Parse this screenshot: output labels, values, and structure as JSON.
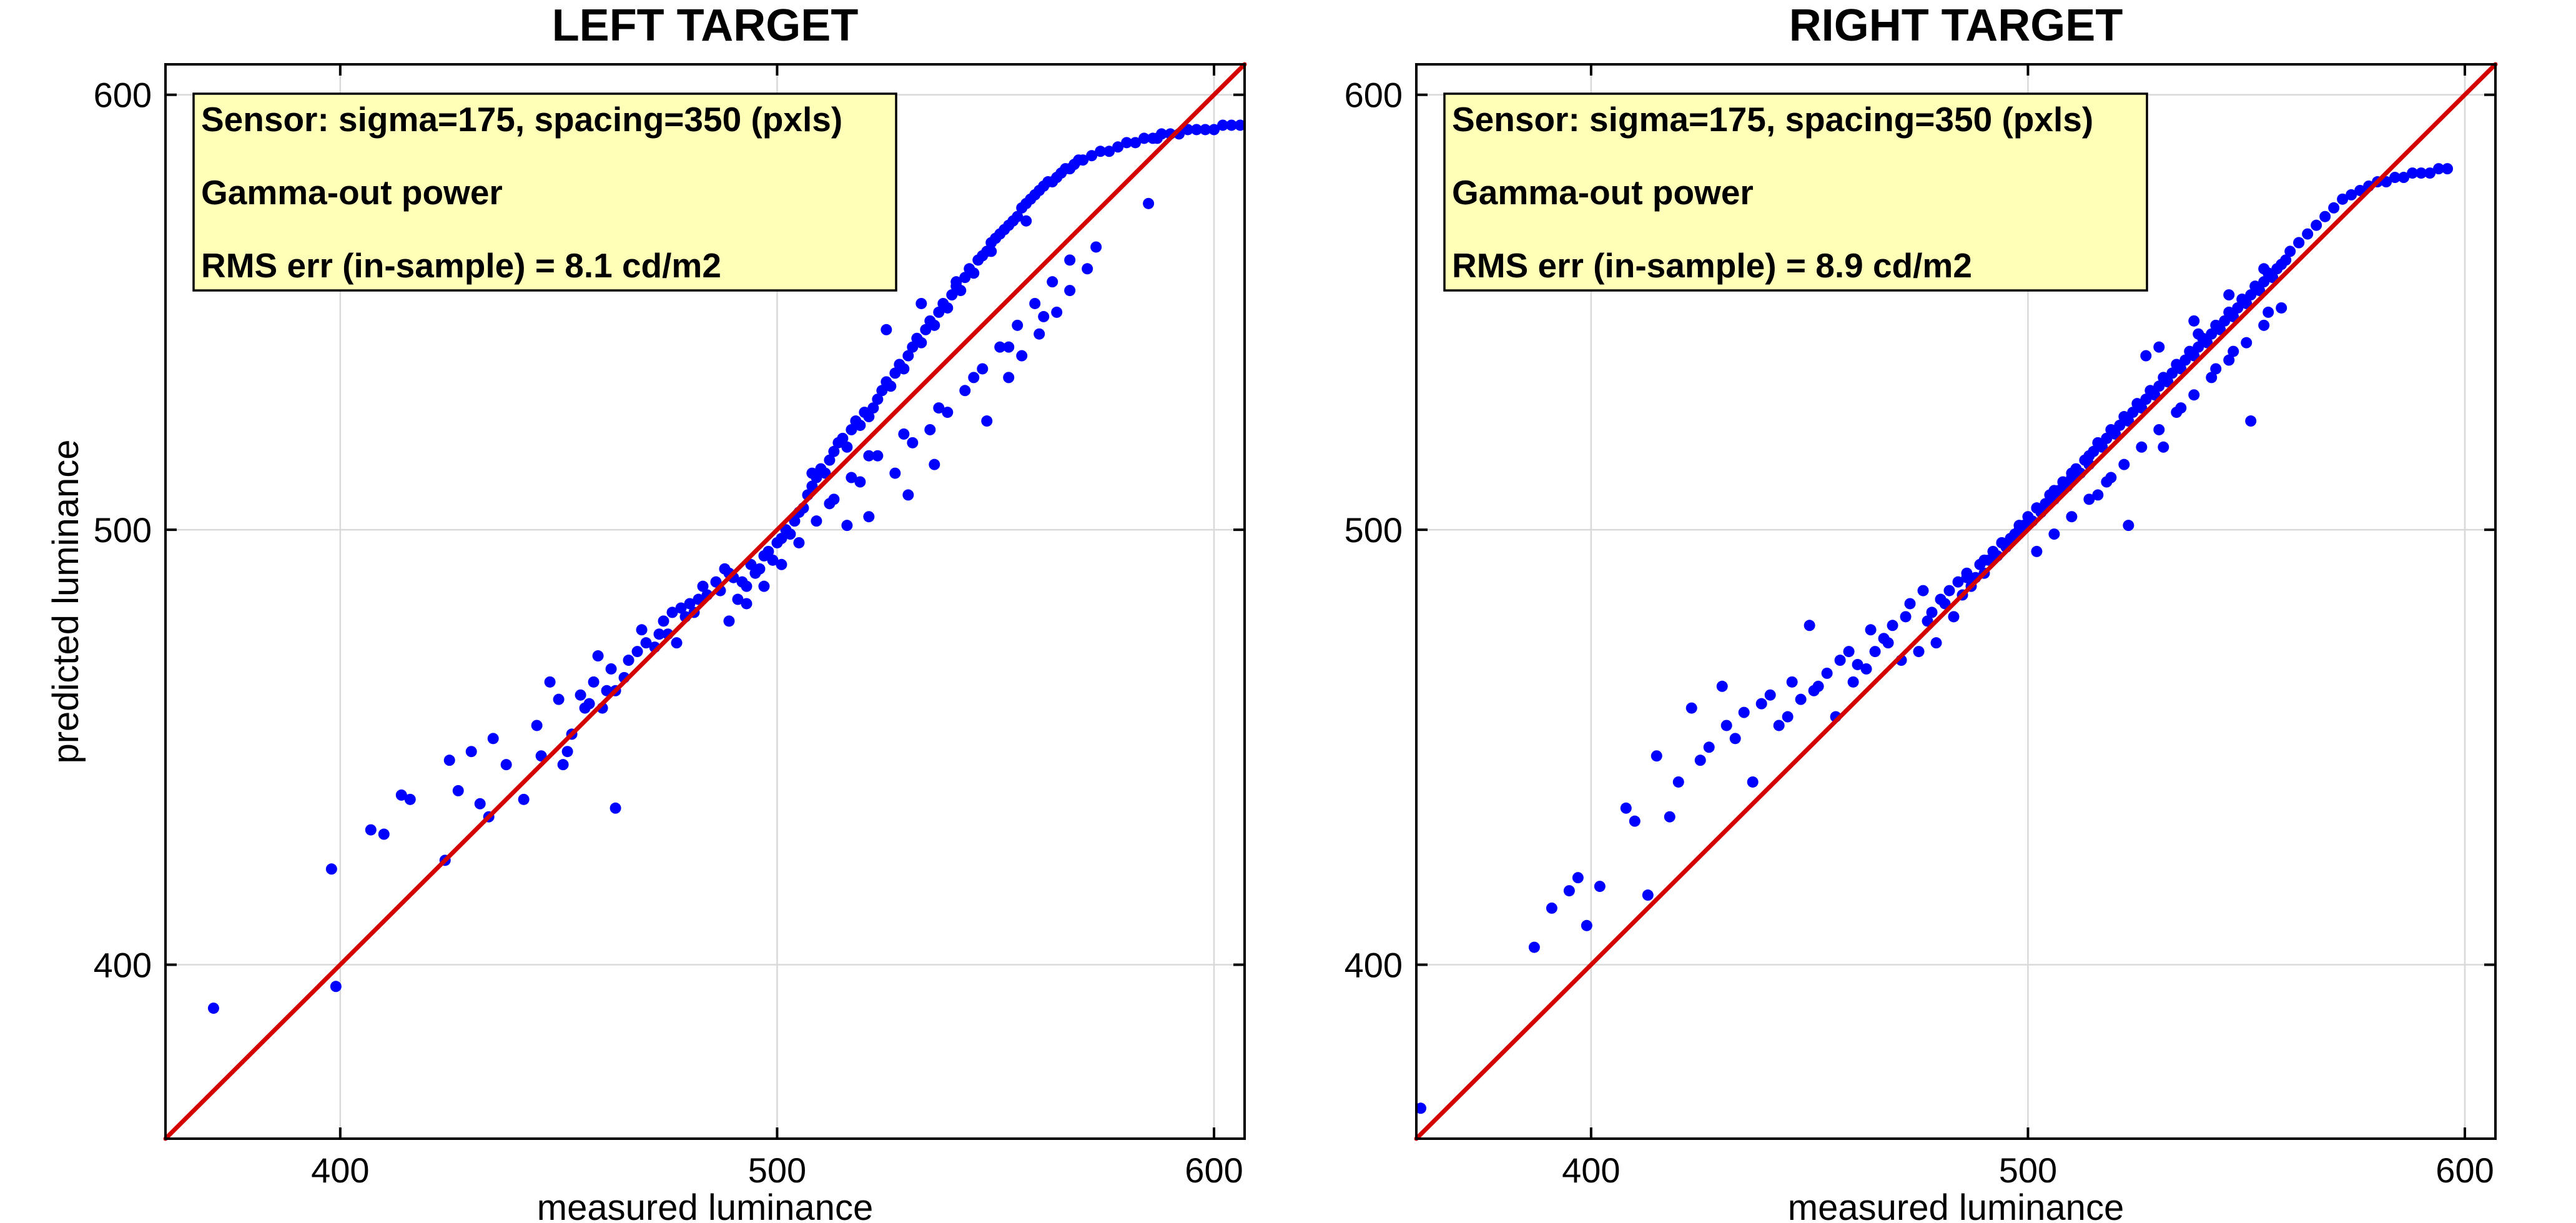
{
  "chart_data": [
    {
      "type": "scatter",
      "title": "LEFT TARGET",
      "xlabel": "measured luminance",
      "ylabel": "predicted luminance",
      "xlim": [
        360,
        607
      ],
      "ylim": [
        360,
        607
      ],
      "xticks": [
        400,
        500,
        600
      ],
      "yticks": [
        400,
        500,
        600
      ],
      "xtick_labels": [
        "400",
        "500",
        "600"
      ],
      "ytick_labels": [
        "400",
        "500",
        "600"
      ],
      "grid": true,
      "annotation_lines": [
        "Sensor: sigma=175, spacing=350 (pxls)",
        "Gamma-out power",
        "RMS err (in-sample) = 8.1 cd/m2"
      ],
      "annotation_position": "top-left",
      "colors": {
        "points": "#0000ff",
        "identity_line": "#d40000"
      },
      "identity_line": [
        [
          360,
          360
        ],
        [
          607,
          607
        ]
      ],
      "series": [
        {
          "x": [
            371,
            398,
            399,
            407,
            410,
            414,
            416,
            424,
            425,
            430,
            432,
            434,
            435,
            438,
            442,
            446,
            448,
            450,
            452,
            453,
            455,
            456,
            457,
            458,
            459,
            460,
            461,
            462,
            463,
            465,
            466,
            468,
            469,
            470,
            472,
            473,
            474,
            475,
            476,
            477,
            478,
            479,
            480,
            481,
            482,
            483,
            484,
            486,
            487,
            488,
            489,
            490,
            491,
            492,
            493,
            494,
            495,
            496,
            497,
            498,
            499,
            500,
            501,
            502,
            503,
            504,
            505,
            506,
            507,
            508,
            509,
            510,
            511,
            512,
            513,
            514,
            515,
            516,
            517,
            518,
            519,
            520,
            521,
            522,
            523,
            524,
            525,
            526,
            527,
            528,
            529,
            530,
            531,
            532,
            533,
            534,
            535,
            536,
            537,
            538,
            539,
            540,
            541,
            542,
            543,
            544,
            545,
            546,
            547,
            548,
            549,
            550,
            551,
            552,
            553,
            554,
            555,
            556,
            557,
            558,
            559,
            560,
            561,
            562,
            563,
            564,
            565,
            566,
            567,
            568,
            569,
            570,
            572,
            574,
            576,
            578,
            580,
            582,
            584,
            586,
            587,
            588,
            590,
            592,
            594,
            596,
            598,
            600,
            602,
            604,
            606,
            463,
            427,
            445,
            451,
            521,
            530,
            536,
            548,
            553,
            556,
            560,
            564,
            567,
            571,
            573,
            508,
            512,
            516,
            519,
            523,
            527,
            531,
            535,
            539,
            543,
            547,
            551,
            555,
            559,
            563,
            567,
            525,
            533,
            541,
            549,
            557,
            489,
            493,
            497,
            501,
            505,
            509,
            513,
            517,
            521,
            529,
            537,
            545,
            553,
            561,
            585
          ],
          "y": [
            390,
            422,
            395,
            431,
            430,
            439,
            438,
            424,
            447,
            449,
            437,
            434,
            452,
            446,
            438,
            448,
            465,
            461,
            449,
            453,
            462,
            459,
            460,
            465,
            471,
            459,
            463,
            468,
            463,
            466,
            470,
            472,
            477,
            474,
            473,
            476,
            479,
            476,
            481,
            474,
            482,
            480,
            483,
            481,
            484,
            487,
            485,
            488,
            486,
            491,
            490,
            489,
            484,
            488,
            487,
            492,
            490,
            491,
            494,
            495,
            493,
            497,
            498,
            500,
            499,
            502,
            504,
            505,
            508,
            510,
            512,
            514,
            513,
            516,
            518,
            520,
            521,
            519,
            523,
            525,
            524,
            527,
            526,
            528,
            530,
            532,
            534,
            533,
            536,
            538,
            537,
            540,
            542,
            544,
            543,
            546,
            548,
            547,
            550,
            552,
            551,
            554,
            556,
            555,
            558,
            560,
            559,
            562,
            563,
            564,
            566,
            567,
            568,
            569,
            570,
            571,
            572,
            574,
            575,
            576,
            577,
            578,
            579,
            580,
            580,
            581,
            582,
            583,
            583,
            584,
            585,
            585,
            586,
            587,
            587,
            588,
            589,
            589,
            590,
            590,
            590,
            591,
            591,
            591,
            592,
            592,
            592,
            592,
            593,
            593,
            593,
            436,
            440,
            455,
            446,
            503,
            508,
            515,
            525,
            535,
            540,
            545,
            550,
            555,
            560,
            565,
            513,
            506,
            501,
            511,
            517,
            513,
            520,
            523,
            527,
            532,
            537,
            542,
            547,
            552,
            557,
            562,
            546,
            552,
            557,
            564,
            571,
            479,
            483,
            487,
            492,
            497,
            502,
            507,
            512,
            517,
            522,
            528,
            535,
            542,
            549,
            575
          ]
        }
      ]
    },
    {
      "type": "scatter",
      "title": "RIGHT TARGET",
      "xlabel": "measured luminance",
      "ylabel": "",
      "xlim": [
        360,
        607
      ],
      "ylim": [
        360,
        607
      ],
      "xticks": [
        400,
        500,
        600
      ],
      "yticks": [
        400,
        500,
        600
      ],
      "xtick_labels": [
        "400",
        "500",
        "600"
      ],
      "ytick_labels": [
        "400",
        "500",
        "600"
      ],
      "grid": true,
      "annotation_lines": [
        "Sensor: sigma=175, spacing=350 (pxls)",
        "Gamma-out power",
        "RMS err (in-sample) = 8.9 cd/m2"
      ],
      "annotation_position": "top-left",
      "colors": {
        "points": "#0000ff",
        "identity_line": "#d40000"
      },
      "identity_line": [
        [
          360,
          360
        ],
        [
          607,
          607
        ]
      ],
      "series": [
        {
          "x": [
            361,
            387,
            391,
            395,
            397,
            399,
            402,
            408,
            410,
            413,
            415,
            418,
            420,
            423,
            425,
            427,
            430,
            431,
            433,
            435,
            437,
            439,
            441,
            443,
            445,
            446,
            448,
            450,
            451,
            452,
            454,
            456,
            457,
            459,
            460,
            461,
            463,
            464,
            465,
            467,
            468,
            469,
            471,
            472,
            473,
            475,
            476,
            477,
            478,
            479,
            480,
            481,
            482,
            483,
            484,
            485,
            486,
            487,
            488,
            489,
            490,
            491,
            492,
            493,
            494,
            495,
            496,
            497,
            498,
            499,
            500,
            501,
            502,
            503,
            504,
            505,
            506,
            507,
            508,
            509,
            510,
            511,
            512,
            513,
            514,
            515,
            516,
            517,
            518,
            519,
            520,
            521,
            522,
            523,
            524,
            525,
            526,
            527,
            528,
            529,
            530,
            531,
            532,
            533,
            534,
            535,
            536,
            537,
            538,
            539,
            540,
            541,
            542,
            543,
            544,
            545,
            546,
            547,
            548,
            549,
            550,
            551,
            552,
            553,
            554,
            555,
            556,
            557,
            558,
            559,
            560,
            562,
            564,
            566,
            568,
            570,
            572,
            574,
            576,
            578,
            580,
            582,
            584,
            586,
            588,
            590,
            592,
            594,
            596,
            516,
            519,
            523,
            527,
            531,
            535,
            539,
            543,
            547,
            551,
            555,
            502,
            506,
            510,
            514,
            518,
            522,
            526,
            530,
            534,
            538,
            542,
            546,
            550,
            554,
            558,
            530,
            538,
            546,
            554,
            562,
            486,
            490,
            494,
            498,
            502,
            506,
            510,
            514,
            518
          ],
          "y": [
            367,
            404,
            413,
            417,
            420,
            409,
            418,
            436,
            433,
            416,
            448,
            434,
            442,
            459,
            447,
            450,
            464,
            455,
            452,
            458,
            442,
            460,
            462,
            455,
            457,
            465,
            461,
            478,
            463,
            464,
            467,
            457,
            470,
            472,
            465,
            469,
            468,
            477,
            472,
            475,
            474,
            478,
            470,
            480,
            483,
            472,
            486,
            479,
            481,
            474,
            484,
            483,
            486,
            480,
            488,
            485,
            490,
            487,
            489,
            492,
            490,
            493,
            495,
            494,
            497,
            496,
            498,
            499,
            500,
            501,
            503,
            502,
            505,
            504,
            506,
            508,
            507,
            509,
            511,
            510,
            512,
            514,
            513,
            516,
            515,
            518,
            520,
            519,
            521,
            523,
            522,
            524,
            526,
            525,
            527,
            529,
            528,
            530,
            532,
            531,
            533,
            535,
            534,
            536,
            538,
            537,
            539,
            541,
            540,
            542,
            544,
            543,
            545,
            547,
            546,
            548,
            550,
            549,
            551,
            553,
            552,
            554,
            556,
            555,
            557,
            559,
            558,
            560,
            561,
            562,
            564,
            566,
            568,
            570,
            572,
            574,
            576,
            577,
            578,
            579,
            580,
            580,
            581,
            581,
            582,
            582,
            582,
            583,
            583,
            508,
            512,
            501,
            540,
            519,
            528,
            545,
            537,
            541,
            525,
            550,
            495,
            499,
            503,
            507,
            511,
            515,
            519,
            523,
            527,
            531,
            535,
            539,
            543,
            547,
            551,
            542,
            548,
            554,
            560,
            566,
            489,
            493,
            497,
            501,
            505,
            509,
            513,
            517,
            521
          ]
        }
      ]
    }
  ]
}
